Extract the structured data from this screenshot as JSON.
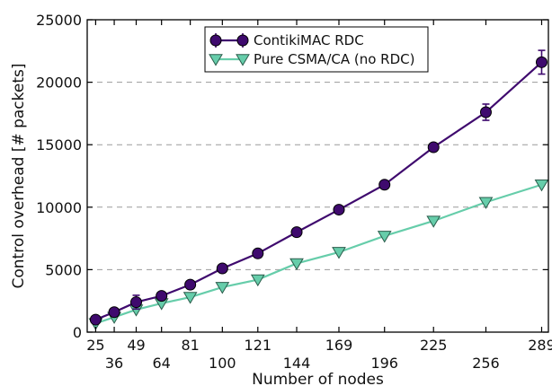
{
  "chart_data": {
    "type": "line",
    "title": "",
    "xlabel": "Number of nodes",
    "ylabel": "Control overhead [# packets]",
    "x": [
      25,
      36,
      49,
      64,
      81,
      100,
      121,
      144,
      169,
      196,
      225,
      256,
      289
    ],
    "x_tick_labels": [
      "25",
      "36",
      "49",
      "64",
      "81",
      "100",
      "121",
      "144",
      "169",
      "196",
      "225",
      "256",
      "289"
    ],
    "ylim": [
      0,
      25000
    ],
    "y_ticks": [
      0,
      5000,
      10000,
      15000,
      20000,
      25000
    ],
    "y_tick_labels": [
      "0",
      "5000",
      "10000",
      "15000",
      "20000",
      "25000"
    ],
    "grid": "horizontal dashed",
    "legend_position": "top-center",
    "series": [
      {
        "name": "ContikiMAC RDC",
        "color": "#3f0a6e",
        "marker": "circle",
        "values": [
          1000,
          1600,
          2400,
          2900,
          3800,
          5100,
          6300,
          8000,
          9800,
          11800,
          14800,
          17600,
          21600
        ],
        "errors": [
          250,
          250,
          550,
          250,
          250,
          300,
          300,
          300,
          300,
          250,
          300,
          650,
          950
        ]
      },
      {
        "name": "Pure CSMA/CA (no RDC)",
        "color": "#66cdaa",
        "marker": "triangle-down",
        "values": [
          700,
          1200,
          1800,
          2300,
          2800,
          3600,
          4200,
          5500,
          6400,
          7700,
          8900,
          10400,
          11800
        ],
        "errors": []
      }
    ]
  }
}
